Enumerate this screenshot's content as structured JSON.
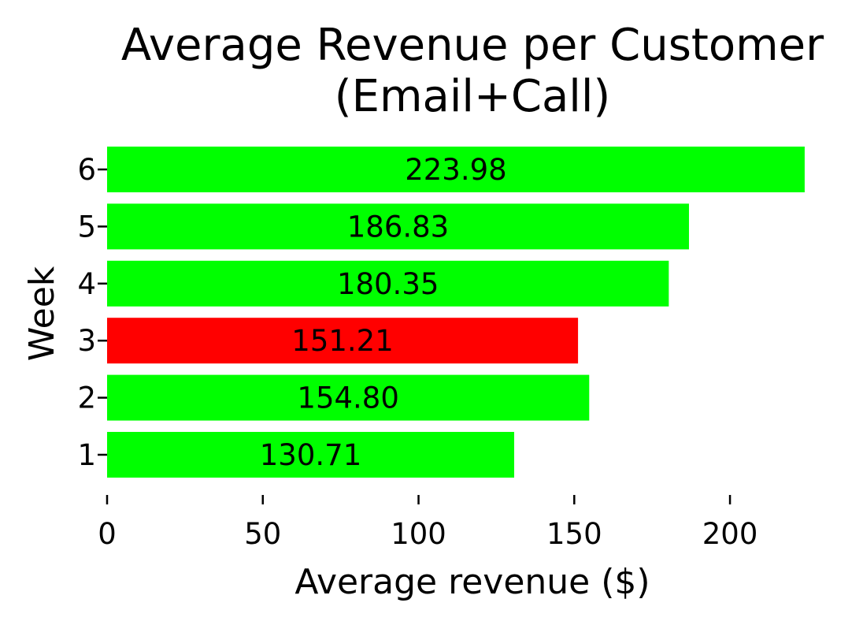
{
  "chart_data": {
    "type": "bar",
    "orientation": "horizontal",
    "title_lines": [
      "Average Revenue per Customer",
      "(Email+Call)"
    ],
    "xlabel": "Average revenue ($)",
    "ylabel": "Week",
    "categories": [
      "1",
      "2",
      "3",
      "4",
      "5",
      "6"
    ],
    "values": [
      130.71,
      154.8,
      151.21,
      180.35,
      186.83,
      223.98
    ],
    "value_labels": [
      "130.71",
      "154.80",
      "151.21",
      "180.35",
      "186.83",
      "223.98"
    ],
    "bar_colors": [
      "#00ff00",
      "#00ff00",
      "#ff0000",
      "#00ff00",
      "#00ff00",
      "#00ff00"
    ],
    "xticks": [
      0,
      50,
      100,
      150,
      200
    ],
    "xtick_labels": [
      "0",
      "50",
      "100",
      "150",
      "200"
    ],
    "xlim": [
      0,
      224
    ],
    "grid": false,
    "legend": "none"
  }
}
